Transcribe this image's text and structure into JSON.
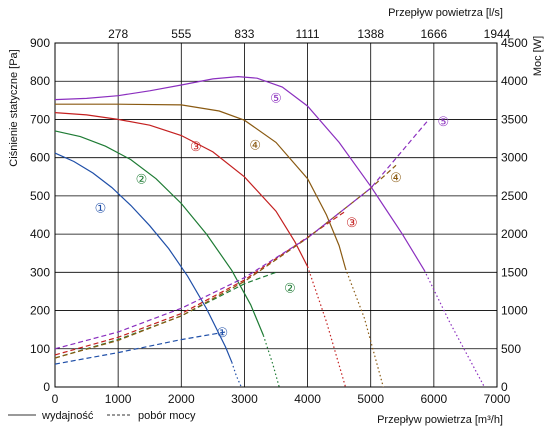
{
  "chart_data": {
    "type": "line",
    "xlabel_bottom": "Przepływ powietrza [m³/h]",
    "xlabel_top": "Przepływ powietrza [l/s]",
    "ylabel_left": "Ciśnienie statyczne [Pa]",
    "ylabel_right": "Moc [W]",
    "x_bottom_ticks": [
      "0",
      "1000",
      "2000",
      "3000",
      "4000",
      "5000",
      "6000",
      "7000"
    ],
    "x_top_ticks": [
      "278",
      "555",
      "833",
      "1111",
      "1388",
      "1666",
      "1944"
    ],
    "y_left_ticks": [
      "0",
      "100",
      "200",
      "300",
      "400",
      "500",
      "600",
      "700",
      "800",
      "900"
    ],
    "y_right_ticks": [
      "0",
      "500",
      "1000",
      "1500",
      "2000",
      "2500",
      "3000",
      "3500",
      "4000",
      "4500"
    ],
    "xlim": [
      0,
      7000
    ],
    "ylim_left": [
      0,
      900
    ],
    "ylim_right": [
      0,
      4500
    ],
    "grid": true,
    "legend": [
      {
        "style": "solid",
        "label": "wydajność"
      },
      {
        "style": "dashed",
        "label": "pobór mocy"
      }
    ],
    "series": [
      {
        "label": "①",
        "color": "#1f4fa8",
        "pressure": [
          [
            0,
            612
          ],
          [
            300,
            590
          ],
          [
            600,
            560
          ],
          [
            900,
            522
          ],
          [
            1200,
            475
          ],
          [
            1500,
            422
          ],
          [
            1800,
            362
          ],
          [
            2100,
            290
          ],
          [
            2400,
            205
          ],
          [
            2700,
            105
          ],
          [
            2800,
            65
          ]
        ],
        "pressure_dotted": [
          [
            2800,
            65
          ],
          [
            2870,
            30
          ],
          [
            2950,
            0
          ]
        ],
        "power": [
          [
            0,
            300
          ],
          [
            1000,
            450
          ],
          [
            2000,
            620
          ],
          [
            2700,
            720
          ]
        ]
      },
      {
        "label": "②",
        "color": "#1e7b34",
        "pressure": [
          [
            0,
            670
          ],
          [
            400,
            655
          ],
          [
            800,
            630
          ],
          [
            1200,
            595
          ],
          [
            1600,
            545
          ],
          [
            2000,
            480
          ],
          [
            2400,
            400
          ],
          [
            2800,
            305
          ],
          [
            3100,
            215
          ],
          [
            3300,
            135
          ]
        ],
        "pressure_dotted": [
          [
            3300,
            135
          ],
          [
            3450,
            60
          ],
          [
            3550,
            0
          ]
        ],
        "power": [
          [
            0,
            380
          ],
          [
            1000,
            620
          ],
          [
            2000,
            930
          ],
          [
            3000,
            1350
          ],
          [
            3500,
            1500
          ]
        ]
      },
      {
        "label": "③",
        "color": "#c42020",
        "pressure": [
          [
            0,
            718
          ],
          [
            500,
            712
          ],
          [
            1000,
            700
          ],
          [
            1500,
            685
          ],
          [
            2000,
            658
          ],
          [
            2500,
            615
          ],
          [
            3000,
            550
          ],
          [
            3500,
            460
          ],
          [
            3800,
            380
          ],
          [
            4000,
            315
          ]
        ],
        "pressure_dotted": [
          [
            4000,
            315
          ],
          [
            4300,
            170
          ],
          [
            4600,
            0
          ]
        ],
        "power": [
          [
            0,
            420
          ],
          [
            1000,
            650
          ],
          [
            2000,
            960
          ],
          [
            3000,
            1400
          ],
          [
            4000,
            1960
          ],
          [
            4600,
            2300
          ]
        ]
      },
      {
        "label": "④",
        "color": "#8a5a12",
        "pressure": [
          [
            0,
            740
          ],
          [
            1000,
            740
          ],
          [
            2000,
            738
          ],
          [
            2600,
            722
          ],
          [
            3000,
            698
          ],
          [
            3500,
            640
          ],
          [
            4000,
            545
          ],
          [
            4300,
            450
          ],
          [
            4500,
            370
          ],
          [
            4600,
            310
          ]
        ],
        "pressure_dotted": [
          [
            4600,
            310
          ],
          [
            4900,
            180
          ],
          [
            5200,
            0
          ]
        ],
        "power": [
          [
            0,
            380
          ],
          [
            1000,
            610
          ],
          [
            2000,
            930
          ],
          [
            3000,
            1380
          ],
          [
            4000,
            1950
          ],
          [
            5000,
            2600
          ],
          [
            5400,
            2900
          ]
        ]
      },
      {
        "label": "⑤",
        "color": "#8b2fbf",
        "pressure": [
          [
            0,
            752
          ],
          [
            500,
            755
          ],
          [
            1000,
            762
          ],
          [
            1500,
            775
          ],
          [
            2000,
            790
          ],
          [
            2500,
            806
          ],
          [
            2900,
            812
          ],
          [
            3200,
            808
          ],
          [
            3600,
            785
          ],
          [
            4000,
            735
          ],
          [
            4500,
            640
          ],
          [
            5000,
            525
          ],
          [
            5500,
            400
          ],
          [
            5850,
            305
          ]
        ],
        "pressure_dotted": [
          [
            5850,
            305
          ],
          [
            6250,
            170
          ],
          [
            6800,
            0
          ]
        ],
        "power": [
          [
            0,
            500
          ],
          [
            1000,
            720
          ],
          [
            2000,
            1030
          ],
          [
            3000,
            1430
          ],
          [
            4000,
            1950
          ],
          [
            5000,
            2600
          ],
          [
            5900,
            3480
          ]
        ]
      }
    ],
    "labels_pressure": [
      {
        "label": "①",
        "x": 720,
        "y": 470
      },
      {
        "label": "②",
        "x": 1370,
        "y": 545
      },
      {
        "label": "③",
        "x": 2230,
        "y": 630
      },
      {
        "label": "④",
        "x": 3170,
        "y": 635
      },
      {
        "label": "⑤",
        "x": 3500,
        "y": 757
      }
    ],
    "labels_power": [
      {
        "label": "①",
        "x": 2650,
        "y": 720
      },
      {
        "label": "②",
        "x": 3720,
        "y": 1300
      },
      {
        "label": "③",
        "x": 4700,
        "y": 2160
      },
      {
        "label": "④",
        "x": 5400,
        "y": 2750
      },
      {
        "label": "⑤",
        "x": 6150,
        "y": 3480
      }
    ]
  }
}
